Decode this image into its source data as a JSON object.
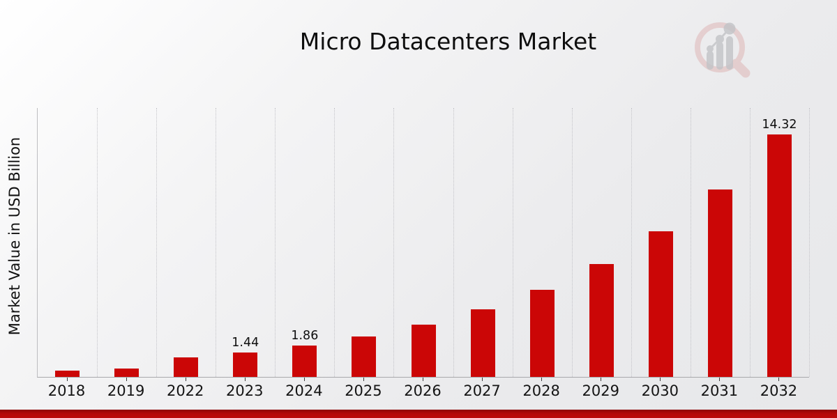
{
  "header": {
    "title": "Micro Datacenters Market"
  },
  "branding": {
    "logo_icon": "magnifier-growth-chart-logo",
    "logo_ring_color": "#debaba",
    "logo_bars_color": "#c2c3c7"
  },
  "chart_data": {
    "type": "bar",
    "title": "Micro Datacenters Market",
    "xlabel": "",
    "ylabel": "Market Value in USD Billion",
    "categories": [
      "2018",
      "2019",
      "2022",
      "2023",
      "2024",
      "2025",
      "2026",
      "2027",
      "2028",
      "2029",
      "2030",
      "2031",
      "2032"
    ],
    "values": [
      0.37,
      0.51,
      1.15,
      1.44,
      1.86,
      2.4,
      3.1,
      4.0,
      5.16,
      6.66,
      8.6,
      11.1,
      14.32
    ],
    "data_labels": [
      "",
      "",
      "",
      "1.44",
      "1.86",
      "",
      "",
      "",
      "",
      "",
      "",
      "",
      "14.32"
    ],
    "ylim": [
      0,
      15.9
    ],
    "bar_color": "#cb0606",
    "grid": "vertical-dotted-between-categories",
    "legend_position": "none"
  },
  "footer": {
    "accent_band_color": "#b70808"
  }
}
